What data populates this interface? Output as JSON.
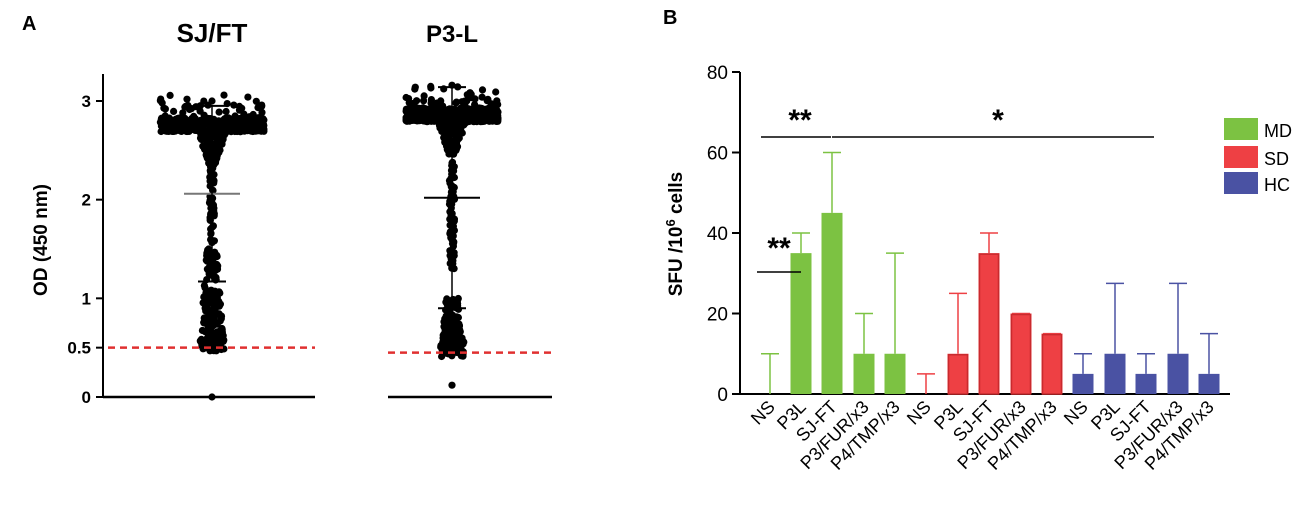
{
  "panels": {
    "a_label": "A",
    "b_label": "B"
  },
  "chart_data": [
    {
      "panel": "A",
      "type": "scatter",
      "ylabel": "OD (450 nm)",
      "ylim": [
        0,
        3.3
      ],
      "yticks": [
        "0",
        "0.5",
        "1",
        "2",
        "3"
      ],
      "ytick_values": [
        0,
        0.5,
        1,
        2,
        3
      ],
      "threshold_color": "#e03030",
      "groups": [
        {
          "name": "SJ/FT",
          "mean": 2.06,
          "sd_low": 1.17,
          "sd_high": 2.95,
          "cutoff": 0.5,
          "min": 0.0,
          "max": 3.0,
          "plateau": 2.76
        },
        {
          "name": "P3-L",
          "mean": 2.02,
          "sd_low": 0.9,
          "sd_high": 3.14,
          "cutoff": 0.45,
          "min": 0.12,
          "max": 3.16,
          "plateau": 2.86
        }
      ]
    },
    {
      "panel": "B",
      "type": "bar",
      "ylabel": "SFU /10⁶ cells",
      "ylim": [
        0,
        80
      ],
      "yticks": [
        "0",
        "20",
        "40",
        "60",
        "80"
      ],
      "ytick_values": [
        0,
        20,
        40,
        60,
        80
      ],
      "categories": [
        "NS",
        "P3L",
        "SJ-FT",
        "P3/FUR/x3",
        "P4/TMP/x3"
      ],
      "series": [
        {
          "name": "MD",
          "color": "#7cc242",
          "values": [
            0,
            35,
            45,
            10,
            10
          ],
          "errors": [
            10,
            40,
            60,
            20,
            35
          ]
        },
        {
          "name": "SD",
          "color": "#ee4044",
          "values": [
            0,
            10,
            35,
            20,
            15
          ],
          "errors": [
            5,
            25,
            40,
            20,
            15
          ]
        },
        {
          "name": "HC",
          "color": "#4a52a3",
          "values": [
            5,
            10,
            5,
            10,
            5
          ],
          "errors": [
            10,
            27.5,
            10,
            27.5,
            15
          ]
        }
      ],
      "annotations": [
        {
          "text": "**",
          "from": "NS",
          "to": "P3L"
        },
        {
          "text": "**",
          "from": "NS",
          "to": "SJ-FT"
        },
        {
          "text": "*",
          "from": "SJ-FT",
          "to": "SJ-FT (HC)"
        }
      ]
    }
  ]
}
